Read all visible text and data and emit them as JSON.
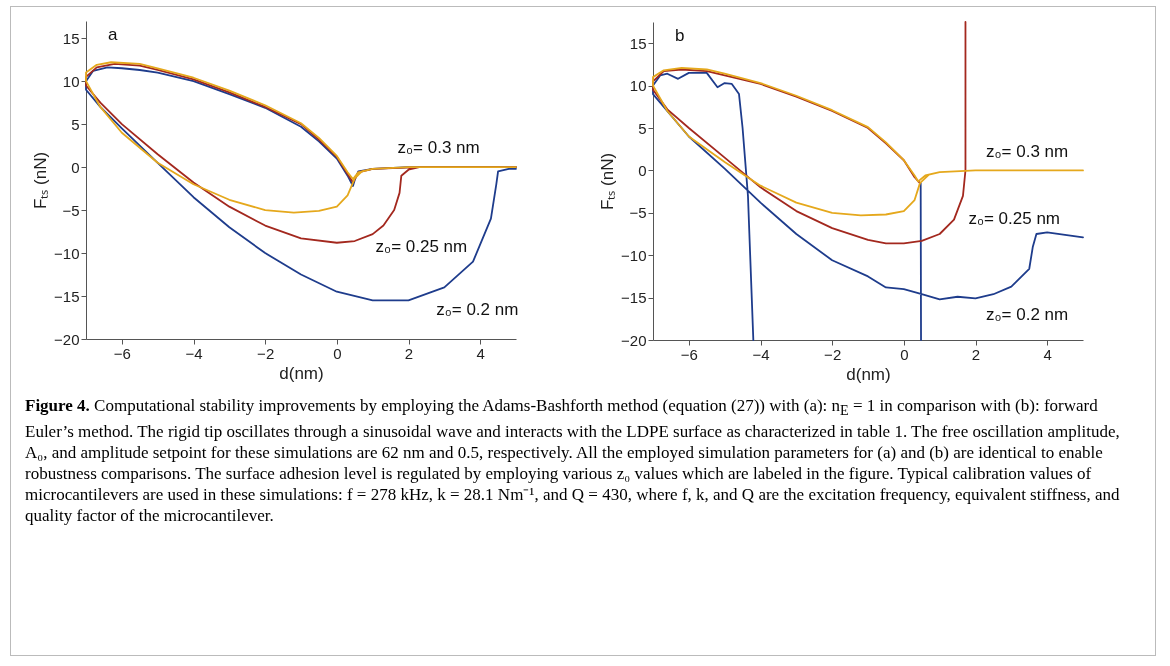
{
  "chart_data": [
    {
      "type": "line",
      "title": "a",
      "xlabel": "d(nm)",
      "ylabel": "Fₜₛ (nN)",
      "xlim": [
        -7,
        5
      ],
      "ylim": [
        -20,
        17
      ],
      "xticks": [
        -6,
        -4,
        -2,
        0,
        2,
        4
      ],
      "yticks": [
        -20,
        -15,
        -10,
        -5,
        0,
        5,
        10,
        15
      ],
      "grid": false,
      "legend": false,
      "series": [
        {
          "name": "z₀= 0.2 nm",
          "color": "#1e3c8c",
          "x": [
            5,
            4.8,
            4.5,
            4.45,
            4.3,
            3.8,
            3,
            2,
            1,
            0,
            -1,
            -2,
            -3,
            -4,
            -5,
            -6,
            -6.6,
            -7,
            -7,
            -6.8,
            -6.4,
            -6,
            -5.5,
            -5,
            -4,
            -3,
            -2,
            -1,
            -0.5,
            0,
            0.3,
            0.45,
            0.5,
            0.6,
            1,
            2,
            5
          ],
          "values": [
            -0.2,
            -0.2,
            -0.5,
            -2,
            -6,
            -11,
            -14,
            -15.5,
            -15.5,
            -14.5,
            -12.5,
            -10,
            -7,
            -3.5,
            0.5,
            4.5,
            7,
            9,
            10,
            11.2,
            11.6,
            11.5,
            11.3,
            11,
            10,
            8.5,
            6.9,
            4.7,
            3,
            1,
            -1,
            -2.2,
            -1.5,
            -0.5,
            -0.2,
            0,
            0
          ]
        },
        {
          "name": "z₀= 0.25 nm",
          "color": "#a3281e",
          "x": [
            5,
            2.3,
            2,
            1.8,
            1.75,
            1.6,
            1.3,
            1,
            0.5,
            0,
            -1,
            -2,
            -3,
            -4,
            -5,
            -6,
            -6.6,
            -7,
            -7,
            -6.7,
            -6.2,
            -5.5,
            -5,
            -4,
            -3,
            -2,
            -1,
            -0.5,
            0,
            0.3,
            0.45,
            0.6,
            1,
            2.3
          ],
          "values": [
            0,
            0,
            -0.3,
            -1,
            -3,
            -5,
            -6.8,
            -7.8,
            -8.6,
            -8.8,
            -8.3,
            -6.8,
            -4.6,
            -1.8,
            1.5,
            5,
            7.5,
            9.5,
            10.5,
            11.6,
            12,
            11.8,
            11.3,
            10.2,
            8.7,
            7,
            5,
            3.2,
            1.2,
            -0.8,
            -1.8,
            -0.6,
            -0.2,
            0
          ]
        },
        {
          "name": "z₀= 0.3 nm",
          "color": "#e5a81c",
          "x": [
            5,
            2,
            1,
            0.7,
            0.5,
            0.3,
            0,
            -0.5,
            -1.2,
            -2,
            -3,
            -4,
            -5,
            -6,
            -6.6,
            -7,
            -7,
            -6.7,
            -6.3,
            -5.5,
            -5,
            -4,
            -3,
            -2,
            -1,
            -0.5,
            0,
            0.3,
            0.45,
            0.6,
            1,
            2
          ],
          "values": [
            0,
            0,
            -0.2,
            -0.5,
            -1.3,
            -3.3,
            -4.6,
            -5.1,
            -5.3,
            -5,
            -3.8,
            -2,
            0.5,
            4,
            7,
            10,
            11,
            11.9,
            12.2,
            12,
            11.5,
            10.4,
            8.9,
            7.2,
            5.1,
            3.4,
            1.3,
            -0.6,
            -1.4,
            -0.6,
            -0.2,
            0
          ]
        }
      ],
      "annotations": [
        "Figure 4.",
        "Computational stability improvements by employing the Adams-Bashforth method (equation (27)) with (a): n$_{E}$ = 1 in comparison with (b): forward Euler’s method. The rigid tip oscillates through a sinusoidal wave and interacts with the LDPE surface as characterized in table 1. The free oscillation amplitude, A₀, and amplitude setpoint for these simulations are 62 nm and 0.5, respectively. All the employed simulation parameters for (a) and (b) are identical to enable robustness comparisons. The surface adhesion level is regulated by employing various z₀ values which are labeled in the figure. Typical calibration values of microcantilevers are used in these simulations: f = 278 kHz, k = 28.1 Nm⁻¹, and Q = 430, where f, k, and Q are the excitation frequency, equivalent stiffness, and quality factor of the microcantilever."
      ]
    },
    {
      "type": "line",
      "title": "b",
      "xlabel": "d(nm)",
      "ylabel": "Fₜₛ (nN)",
      "xlim": [
        -7,
        5
      ],
      "ylim": [
        -20,
        17.5
      ],
      "xticks": [
        -6,
        -4,
        -2,
        0,
        2,
        4
      ],
      "yticks": [
        -20,
        -15,
        -10,
        -5,
        0,
        5,
        10,
        15
      ],
      "grid": false,
      "legend": false,
      "series": [
        {
          "name": "z₀= 0.2 nm",
          "color": "#1e3c8c",
          "x": [
            0.48,
            0.47,
            null,
            -4.2,
            -4.35,
            -4.5,
            -4.6,
            -4.8,
            -5,
            -5.2,
            -5.5,
            -6,
            -6.3,
            -6.6,
            -6.8,
            -7,
            -7,
            -6,
            -5,
            -4,
            -3,
            -2,
            -1,
            -0.5,
            0,
            0.5,
            1,
            1.5,
            2,
            2.5,
            3,
            3.5,
            3.6,
            3.7,
            4,
            4.5,
            5
          ],
          "values": [
            -20,
            -1.5,
            null,
            -20,
            -3,
            5,
            9,
            10.2,
            10.3,
            9.8,
            11.5,
            11.5,
            10.8,
            11.4,
            11.2,
            10,
            9,
            4,
            0.2,
            -3.8,
            -7.5,
            -10.6,
            -12.5,
            -13.8,
            -14,
            -14.6,
            -15.2,
            -14.9,
            -15.1,
            -14.6,
            -13.7,
            -11.6,
            -9,
            -7.5,
            -7.3,
            -7.6,
            -7.9
          ]
        },
        {
          "name": "z₀= 0.25 nm",
          "color": "#a3281e",
          "x": [
            0.45,
            0.3,
            0,
            -0.5,
            -1,
            -2,
            -3,
            -4,
            -5,
            -5.5,
            -6.2,
            -6.7,
            -7,
            -7,
            -6.6,
            -6,
            -5,
            -4,
            -3,
            -2,
            -1,
            -0.5,
            0,
            0.5,
            1,
            1.4,
            1.65,
            1.72,
            1.72
          ],
          "values": [
            -1.5,
            -0.8,
            1.2,
            3.2,
            5,
            7,
            8.7,
            10.2,
            11.2,
            11.7,
            11.9,
            11.7,
            10.5,
            9.5,
            7.2,
            5,
            1.5,
            -2,
            -4.8,
            -6.8,
            -8.2,
            -8.6,
            -8.6,
            -8.3,
            -7.5,
            -5.8,
            -3,
            0,
            17.5
          ]
        },
        {
          "name": "z₀= 0.3 nm",
          "color": "#e5a81c",
          "x": [
            5,
            2,
            1,
            0.7,
            0.45,
            0.3,
            0,
            -0.5,
            -1.2,
            -2,
            -3,
            -4,
            -5,
            -6,
            -6.6,
            -7,
            -7,
            -6.7,
            -6.2,
            -5.5,
            -5,
            -4,
            -3,
            -2,
            -1,
            -0.5,
            0,
            0.3,
            0.4,
            0.6,
            1,
            2
          ],
          "values": [
            0,
            0,
            -0.2,
            -0.5,
            -1.5,
            -3.5,
            -4.8,
            -5.2,
            -5.3,
            -5,
            -3.8,
            -1.8,
            1,
            4,
            7,
            10,
            11,
            11.8,
            12.1,
            11.9,
            11.4,
            10.3,
            8.8,
            7.1,
            5.1,
            3.3,
            1.2,
            -0.6,
            -1.3,
            -0.6,
            -0.2,
            0
          ]
        }
      ]
    }
  ]
}
